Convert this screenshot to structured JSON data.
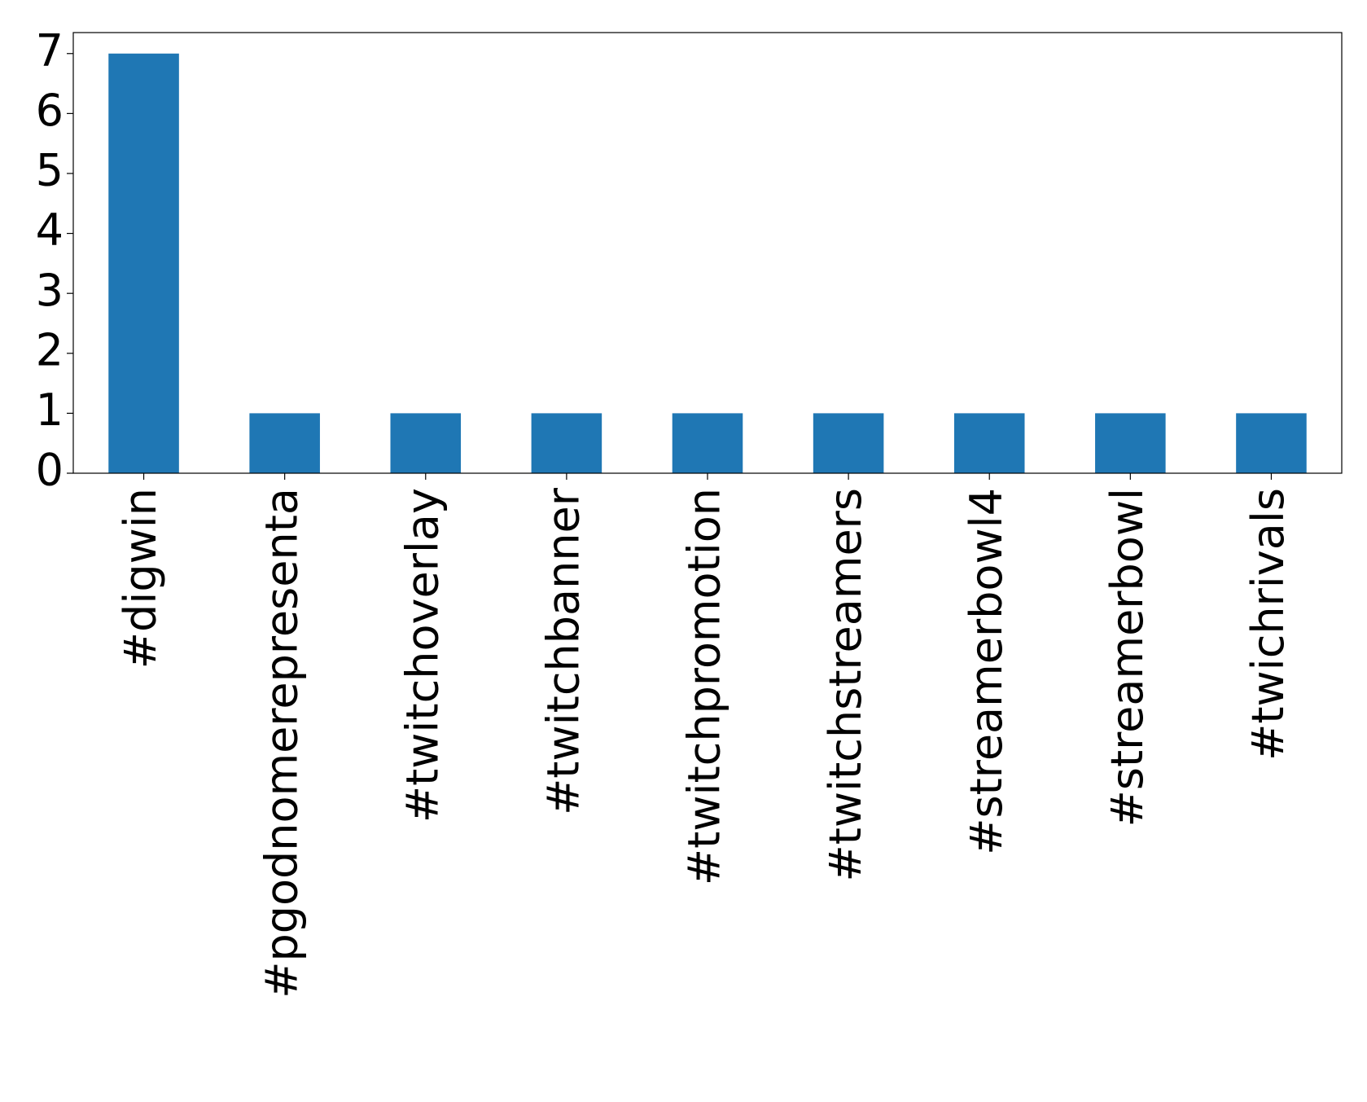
{
  "chart_data": {
    "type": "bar",
    "categories": [
      "#digwin",
      "#pgodnomerepresenta",
      "#twitchoverlay",
      "#twitchbanner",
      "#twitchpromotion",
      "#twitchstreamers",
      "#streamerbowl4",
      "#streamerbowl",
      "#twichrivals"
    ],
    "values": [
      7,
      1,
      1,
      1,
      1,
      1,
      1,
      1,
      1
    ],
    "color": "#1f77b4",
    "ylim": [
      0,
      7.35
    ],
    "yticks": [
      0,
      1,
      2,
      3,
      4,
      5,
      6,
      7
    ],
    "grid": false
  }
}
